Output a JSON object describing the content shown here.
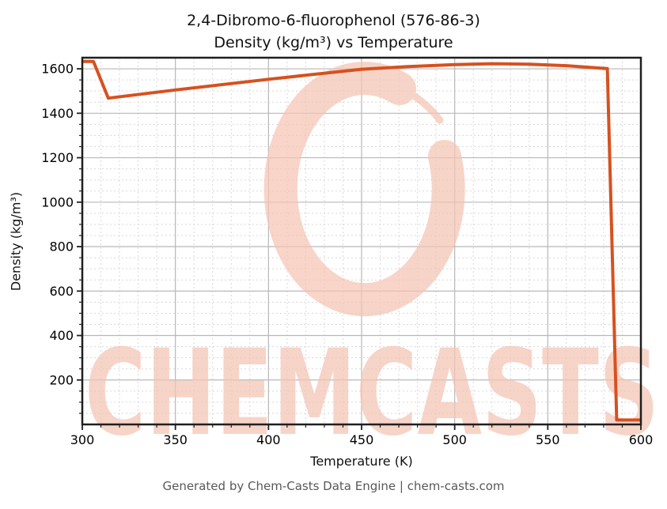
{
  "title": {
    "line1": "2,4-Dibromo-6-fluorophenol (576-86-3)",
    "line2": "Density (kg/m³) vs Temperature"
  },
  "watermark": {
    "text": "CHEMCASTS",
    "logo": "brush-ring-logo"
  },
  "footer": {
    "text": "Generated by Chem-Casts Data Engine | chem-casts.com"
  },
  "colors": {
    "line": "#d6511f",
    "watermark": "#f5c4b4",
    "grid_major": "#b8b8b8",
    "grid_minor": "#d8d8d8",
    "spine": "#1f1f1f",
    "tick_label": "#000000",
    "footer_text": "#585858"
  },
  "chart_data": {
    "type": "line",
    "title": "2,4-Dibromo-6-fluorophenol (576-86-3) — Density (kg/m³) vs Temperature",
    "xlabel": "Temperature (K)",
    "ylabel": "Density (kg/m³)",
    "grid": true,
    "legend": false,
    "x_axis": {
      "min": 300,
      "max": 600,
      "major_ticks": [
        300,
        350,
        400,
        450,
        500,
        550,
        600
      ],
      "minor_step": 10
    },
    "y_axis": {
      "min": 0,
      "max": 1650,
      "major_ticks": [
        200,
        400,
        600,
        800,
        1000,
        1200,
        1400,
        1600
      ],
      "minor_step": 50
    },
    "series": [
      {
        "name": "density",
        "color": "#d6511f",
        "points": [
          [
            300,
            1633
          ],
          [
            306,
            1633
          ],
          [
            314,
            1468
          ],
          [
            350,
            1505
          ],
          [
            400,
            1553
          ],
          [
            450,
            1598
          ],
          [
            475,
            1610
          ],
          [
            500,
            1619
          ],
          [
            520,
            1623
          ],
          [
            540,
            1621
          ],
          [
            560,
            1614
          ],
          [
            582,
            1601
          ],
          [
            587,
            20
          ],
          [
            600,
            20
          ]
        ]
      }
    ]
  }
}
